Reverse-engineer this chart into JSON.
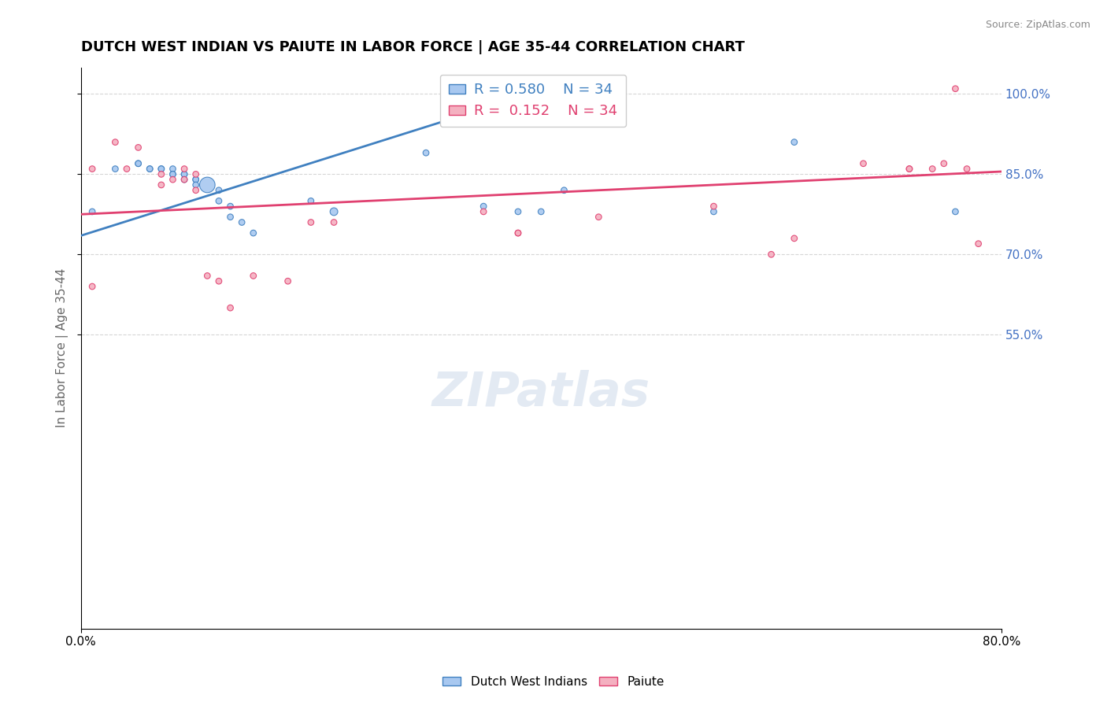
{
  "title": "DUTCH WEST INDIAN VS PAIUTE IN LABOR FORCE | AGE 35-44 CORRELATION CHART",
  "source": "Source: ZipAtlas.com",
  "ylabel": "In Labor Force | Age 35-44",
  "xlabel": "",
  "watermark": "ZIPatlas",
  "x_min": 0.0,
  "x_max": 0.8,
  "y_min": 0.0,
  "y_max": 1.05,
  "x_ticks": [
    0.0,
    0.8
  ],
  "x_tick_labels": [
    "0.0%",
    "80.0%"
  ],
  "y_tick_labels": [
    "55.0%",
    "70.0%",
    "85.0%",
    "100.0%"
  ],
  "y_ticks": [
    0.55,
    0.7,
    0.85,
    1.0
  ],
  "r_blue": 0.58,
  "n_blue": 34,
  "r_pink": 0.152,
  "n_pink": 34,
  "blue_color": "#A8C8F0",
  "pink_color": "#F4B0C0",
  "blue_line_color": "#4080C0",
  "pink_line_color": "#E04070",
  "legend_blue_label": "Dutch West Indians",
  "legend_pink_label": "Paiute",
  "blue_scatter_x": [
    0.01,
    0.03,
    0.05,
    0.05,
    0.06,
    0.06,
    0.07,
    0.07,
    0.08,
    0.08,
    0.08,
    0.09,
    0.09,
    0.09,
    0.1,
    0.1,
    0.1,
    0.11,
    0.12,
    0.12,
    0.13,
    0.13,
    0.14,
    0.15,
    0.2,
    0.22,
    0.3,
    0.35,
    0.38,
    0.4,
    0.42,
    0.55,
    0.62,
    0.76
  ],
  "blue_scatter_y": [
    0.78,
    0.86,
    0.87,
    0.87,
    0.86,
    0.86,
    0.86,
    0.86,
    0.86,
    0.85,
    0.85,
    0.85,
    0.85,
    0.84,
    0.84,
    0.84,
    0.83,
    0.83,
    0.82,
    0.8,
    0.79,
    0.77,
    0.76,
    0.74,
    0.8,
    0.78,
    0.89,
    0.79,
    0.78,
    0.78,
    0.82,
    0.78,
    0.91,
    0.78
  ],
  "blue_scatter_size": [
    30,
    30,
    30,
    30,
    30,
    30,
    30,
    30,
    30,
    30,
    30,
    30,
    30,
    30,
    30,
    30,
    30,
    200,
    30,
    30,
    30,
    30,
    30,
    30,
    30,
    50,
    30,
    30,
    30,
    30,
    30,
    30,
    30,
    30
  ],
  "pink_scatter_x": [
    0.01,
    0.01,
    0.03,
    0.04,
    0.05,
    0.07,
    0.07,
    0.08,
    0.09,
    0.09,
    0.1,
    0.1,
    0.11,
    0.12,
    0.13,
    0.15,
    0.18,
    0.2,
    0.22,
    0.35,
    0.38,
    0.38,
    0.45,
    0.55,
    0.6,
    0.62,
    0.68,
    0.72,
    0.72,
    0.74,
    0.75,
    0.76,
    0.77,
    0.78
  ],
  "pink_scatter_y": [
    0.86,
    0.64,
    0.91,
    0.86,
    0.9,
    0.85,
    0.83,
    0.84,
    0.86,
    0.84,
    0.85,
    0.82,
    0.66,
    0.65,
    0.6,
    0.66,
    0.65,
    0.76,
    0.76,
    0.78,
    0.74,
    0.74,
    0.77,
    0.79,
    0.7,
    0.73,
    0.87,
    0.86,
    0.86,
    0.86,
    0.87,
    1.01,
    0.86,
    0.72
  ],
  "pink_scatter_size": [
    30,
    30,
    30,
    30,
    30,
    30,
    30,
    30,
    30,
    30,
    30,
    30,
    30,
    30,
    30,
    30,
    30,
    30,
    30,
    30,
    30,
    30,
    30,
    30,
    30,
    30,
    30,
    30,
    30,
    30,
    30,
    30,
    30,
    30
  ],
  "blue_trend_x": [
    0.0,
    0.42
  ],
  "blue_trend_y": [
    0.735,
    1.02
  ],
  "pink_trend_x": [
    0.0,
    0.8
  ],
  "pink_trend_y": [
    0.775,
    0.855
  ],
  "background_color": "#FFFFFF",
  "grid_color": "#CCCCCC",
  "title_color": "#000000",
  "title_fontsize": 13,
  "label_fontsize": 11,
  "tick_fontsize": 11,
  "right_tick_color": "#4472C4"
}
